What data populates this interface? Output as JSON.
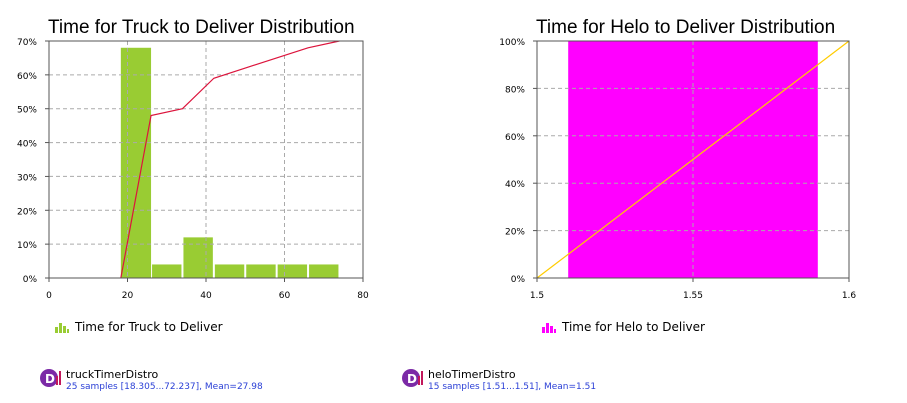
{
  "chart_data": [
    {
      "type": "bar",
      "title": "Time for Truck to Deliver Distribution",
      "xlim": [
        0,
        80
      ],
      "ylim": [
        0,
        0.7
      ],
      "x_ticks": [
        0,
        20,
        40,
        60,
        80
      ],
      "x_tick_labels": [
        "0",
        "20",
        "40",
        "60",
        "80"
      ],
      "y_ticks": [
        0,
        0.1,
        0.2,
        0.3,
        0.4,
        0.5,
        0.6,
        0.7
      ],
      "y_tick_labels": [
        "0%",
        "10%",
        "20%",
        "30%",
        "40%",
        "50%",
        "60%",
        "70%"
      ],
      "grid": true,
      "bars": [
        {
          "x0": 18.3,
          "x1": 26.0,
          "value": 0.68
        },
        {
          "x0": 26.0,
          "x1": 34.0,
          "value": 0.04
        },
        {
          "x0": 34.0,
          "x1": 42.0,
          "value": 0.12
        },
        {
          "x0": 42.0,
          "x1": 50.0,
          "value": 0.04
        },
        {
          "x0": 50.0,
          "x1": 58.0,
          "value": 0.04
        },
        {
          "x0": 58.0,
          "x1": 66.0,
          "value": 0.04
        },
        {
          "x0": 66.0,
          "x1": 74.0,
          "value": 0.04
        }
      ],
      "cdf": {
        "x": [
          18.3,
          26.0,
          34.0,
          42.0,
          50.0,
          58.0,
          66.0,
          74.0
        ],
        "y": [
          0.0,
          0.48,
          0.5,
          0.59,
          0.62,
          0.65,
          0.68,
          0.7
        ]
      },
      "bar_color": "#99cc33",
      "line_color": "#dc143c",
      "legend": "Time for Truck to Deliver",
      "legend_position": "bottom-left"
    },
    {
      "type": "bar",
      "title": "Time for Helo to Deliver Distribution",
      "xlim": [
        1.5,
        1.6
      ],
      "ylim": [
        0,
        1.0
      ],
      "x_ticks": [
        1.5,
        1.55,
        1.6
      ],
      "x_tick_labels": [
        "1.5",
        "1.55",
        "1.6"
      ],
      "y_ticks": [
        0,
        0.2,
        0.4,
        0.6,
        0.8,
        1.0
      ],
      "y_tick_labels": [
        "0%",
        "20%",
        "40%",
        "60%",
        "80%",
        "100%"
      ],
      "grid": true,
      "bars": [
        {
          "x0": 1.51,
          "x1": 1.59,
          "value": 1.0
        }
      ],
      "cdf": {
        "x": [
          1.5,
          1.6
        ],
        "y": [
          0.0,
          1.0
        ]
      },
      "bar_color": "#ff00ff",
      "line_color": "#ffcc00",
      "legend": "Time for Helo to Deliver",
      "legend_position": "bottom-left"
    }
  ],
  "distributions": [
    {
      "name": "truckTimerDistro",
      "stats": "25 samples [18.305...72.237], Mean=27.98",
      "icon": "distribution-icon"
    },
    {
      "name": "heloTimerDistro",
      "stats": "15 samples [1.51...1.51], Mean=1.51",
      "icon": "distribution-icon"
    }
  ],
  "colors": {
    "icon_circle": "#7b2aa6",
    "icon_bars": "#c2185b",
    "stats_text": "#2a3fd6",
    "grid": "#aaaaaa"
  }
}
